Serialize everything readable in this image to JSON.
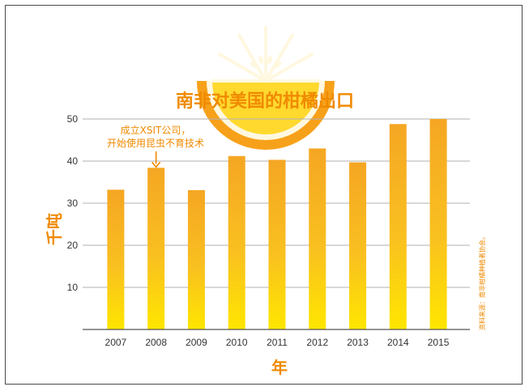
{
  "chart_data": {
    "type": "bar",
    "title": "南非对美国的柑橘出口",
    "xlabel": "年",
    "ylabel": "千吨",
    "categories": [
      "2007",
      "2008",
      "2009",
      "2010",
      "2011",
      "2012",
      "2013",
      "2014",
      "2015"
    ],
    "values": [
      33.2,
      38.4,
      33.1,
      41.2,
      40.3,
      43.0,
      39.7,
      48.8,
      50.0
    ],
    "ylim": [
      0,
      50
    ],
    "yticks": [
      "10",
      "20",
      "30",
      "40",
      "50"
    ],
    "grid": true,
    "annotation": {
      "category": "2008",
      "line1": "成立XSIT公司，",
      "line2": "开始使用昆虫不育技术"
    },
    "source": "资料来源：南非柑橘种植者协会。",
    "colors": {
      "bar_top": "#f5a623",
      "bar_bottom": "#ffe000",
      "accent": "#f08a00",
      "grid": "#b0b0b0"
    }
  }
}
